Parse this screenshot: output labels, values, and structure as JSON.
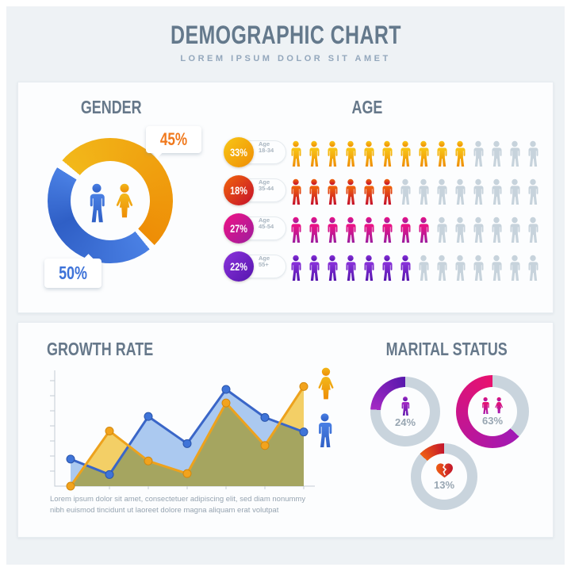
{
  "header": {
    "title": "DEMOGRAPHIC CHART",
    "subtitle": "LOREM IPSUM DOLOR SIT AMET"
  },
  "gender": {
    "title": "GENDER",
    "female_pct": "45%",
    "male_pct": "50%",
    "female_label_color": "#f0791d",
    "male_label_color": "#3d72d8",
    "donut": {
      "female_value": 45,
      "male_value": 50,
      "female_gradient": [
        "#f2b81a",
        "#ee8d06"
      ],
      "male_gradient": [
        "#4a80e4",
        "#2f5fc6"
      ]
    }
  },
  "age": {
    "title": "AGE",
    "empty_color": "#c7d3dc",
    "rows": [
      {
        "percent": "33%",
        "label": "Age",
        "range": "18-34",
        "filled": 10,
        "total": 14,
        "grad": [
          "#f8c716",
          "#ef8d05"
        ]
      },
      {
        "percent": "18%",
        "label": "Age",
        "range": "35-44",
        "filled": 6,
        "total": 14,
        "grad": [
          "#f1650b",
          "#c50f2b"
        ]
      },
      {
        "percent": "27%",
        "label": "Age",
        "range": "45-54",
        "filled": 8,
        "total": 14,
        "grad": [
          "#f01284",
          "#9c1d9f"
        ]
      },
      {
        "percent": "22%",
        "label": "Age",
        "range": "55+",
        "filled": 7,
        "total": 14,
        "grad": [
          "#8b33db",
          "#5515ae"
        ]
      }
    ]
  },
  "growth": {
    "title": "GROWTH RATE",
    "caption_line1": "Lorem ipsum dolor sit amet, consectetuer adipiscing elit, sed diam nonummy",
    "caption_line2": "nibh euismod tincidunt ut laoreet dolore magna aliquam erat volutpat"
  },
  "marital": {
    "title": "MARITAL STATUS",
    "ring_color": "#c9d4dd",
    "items": [
      {
        "percent": "24%",
        "value": 24,
        "icon": "single-person-icon",
        "grad": [
          "#a428c4",
          "#5818ac"
        ]
      },
      {
        "percent": "63%",
        "value": 63,
        "icon": "couple-icon",
        "grad": [
          "#a01ab5",
          "#e8116e"
        ]
      },
      {
        "percent": "13%",
        "value": 13,
        "icon": "broken-heart-icon",
        "grad": [
          "#ef5f14",
          "#c3152b"
        ]
      }
    ]
  },
  "chart_data": [
    {
      "type": "pie",
      "title": "GENDER",
      "hole": true,
      "slices": [
        {
          "label": "female",
          "value": 45,
          "color": "#f0a011",
          "data_label": "45%"
        },
        {
          "label": "male",
          "value": 50,
          "color": "#3d72d8",
          "data_label": "50%"
        }
      ]
    },
    {
      "type": "pictogram",
      "title": "AGE",
      "categories": [
        "Age 18-34",
        "Age 35-44",
        "Age 45-54",
        "Age 55+"
      ],
      "values": [
        33,
        18,
        27,
        22
      ],
      "icons_filled": [
        10,
        6,
        8,
        7
      ],
      "icons_per_row": 14,
      "colors": [
        "#f09a0e",
        "#d93a1d",
        "#d6158f",
        "#6f24c4"
      ]
    },
    {
      "type": "area",
      "title": "GROWTH RATE",
      "x": [
        1,
        2,
        3,
        4,
        5,
        6,
        7
      ],
      "series": [
        {
          "name": "male",
          "color": "#3a66c8",
          "fill": "#a4c4ef",
          "values": [
            28,
            12,
            72,
            44,
            100,
            71,
            56
          ]
        },
        {
          "name": "female",
          "color": "#eda21d",
          "fill": "#f6cf5e",
          "values": [
            0,
            57,
            26,
            13,
            86,
            42,
            103
          ]
        }
      ],
      "ylim": [
        0,
        125
      ],
      "grid": false,
      "axis_tick_labels": false,
      "legend": [
        "female",
        "male"
      ],
      "legend_position": "right"
    },
    {
      "type": "pie",
      "title": "MARITAL STATUS",
      "hole": true,
      "slices": [
        {
          "label": "single",
          "value": 24,
          "data_label": "24%"
        },
        {
          "label": "married",
          "value": 63,
          "data_label": "63%"
        },
        {
          "label": "separated",
          "value": 13,
          "data_label": "13%"
        }
      ]
    }
  ]
}
